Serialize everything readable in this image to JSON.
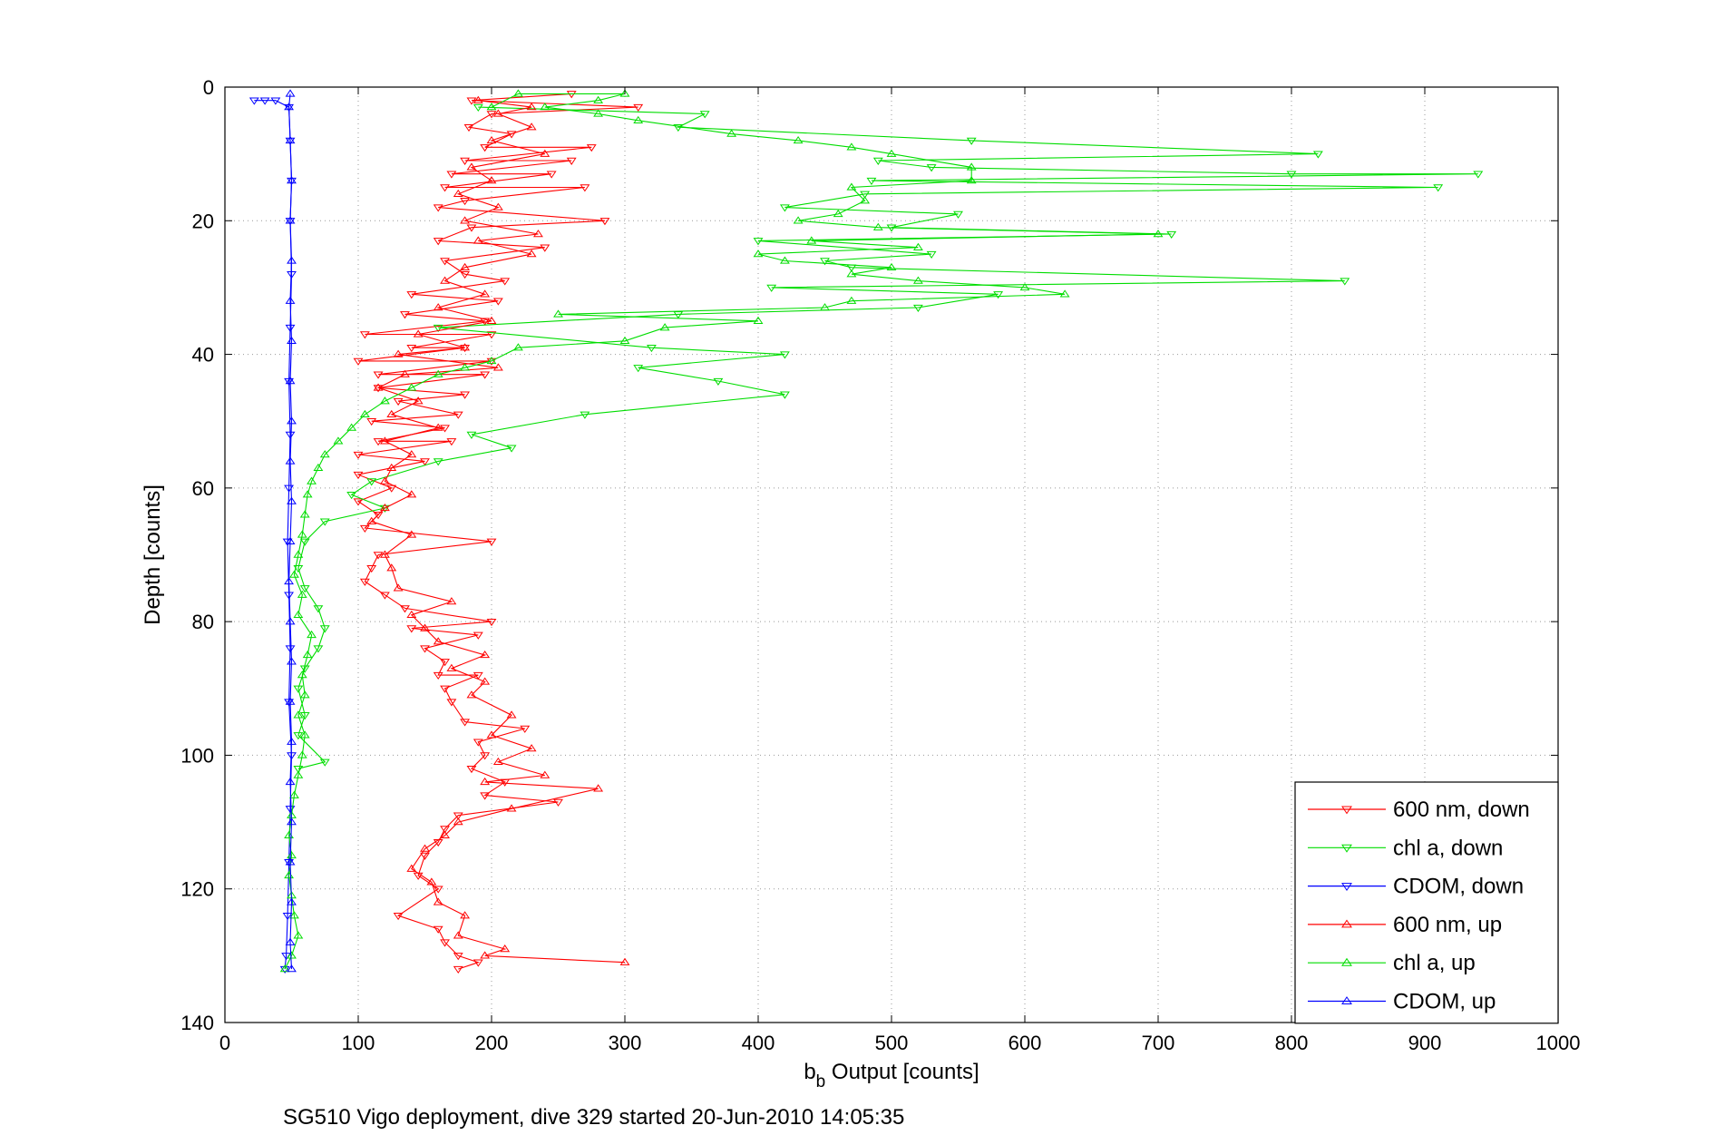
{
  "chart_data": {
    "type": "line",
    "xlabel": {
      "main": "b",
      "sub": "b",
      "rest": " Output [counts]"
    },
    "ylabel": "Depth [counts]",
    "caption": "SG510 Vigo deployment, dive 329 started 20-Jun-2010 14:05:35",
    "xlim": [
      0,
      1000
    ],
    "ylim": [
      0,
      140
    ],
    "y_reversed": true,
    "grid": true,
    "legend_position": "bottom-right",
    "xticks": [
      "0",
      "100",
      "200",
      "300",
      "400",
      "500",
      "600",
      "700",
      "800",
      "900",
      "1000"
    ],
    "yticks": [
      "0",
      "20",
      "40",
      "60",
      "80",
      "100",
      "120",
      "140"
    ],
    "series": [
      {
        "name": "600 nm, down",
        "color": "#ff0000",
        "marker": "triangle-down",
        "points": [
          [
            260,
            1
          ],
          [
            185,
            2
          ],
          [
            310,
            3
          ],
          [
            200,
            4
          ],
          [
            183,
            6
          ],
          [
            215,
            7
          ],
          [
            195,
            9
          ],
          [
            275,
            9
          ],
          [
            180,
            11
          ],
          [
            260,
            11
          ],
          [
            170,
            13
          ],
          [
            245,
            13
          ],
          [
            165,
            15
          ],
          [
            270,
            15
          ],
          [
            180,
            17
          ],
          [
            160,
            18
          ],
          [
            285,
            20
          ],
          [
            185,
            21
          ],
          [
            160,
            23
          ],
          [
            240,
            24
          ],
          [
            165,
            26
          ],
          [
            180,
            28
          ],
          [
            210,
            29
          ],
          [
            140,
            31
          ],
          [
            205,
            32
          ],
          [
            135,
            34
          ],
          [
            195,
            35
          ],
          [
            105,
            37
          ],
          [
            200,
            37
          ],
          [
            140,
            39
          ],
          [
            180,
            39
          ],
          [
            100,
            41
          ],
          [
            200,
            41
          ],
          [
            115,
            43
          ],
          [
            195,
            43
          ],
          [
            115,
            45
          ],
          [
            180,
            46
          ],
          [
            130,
            47
          ],
          [
            175,
            49
          ],
          [
            110,
            50
          ],
          [
            165,
            51
          ],
          [
            115,
            53
          ],
          [
            170,
            53
          ],
          [
            100,
            55
          ],
          [
            150,
            56
          ],
          [
            100,
            58
          ],
          [
            125,
            60
          ],
          [
            100,
            62
          ],
          [
            115,
            64
          ],
          [
            105,
            66
          ],
          [
            200,
            68
          ],
          [
            115,
            70
          ],
          [
            110,
            72
          ],
          [
            105,
            74
          ],
          [
            120,
            76
          ],
          [
            135,
            78
          ],
          [
            200,
            80
          ],
          [
            140,
            81
          ],
          [
            190,
            82
          ],
          [
            150,
            84
          ],
          [
            165,
            86
          ],
          [
            160,
            88
          ],
          [
            190,
            88
          ],
          [
            165,
            90
          ],
          [
            170,
            92
          ],
          [
            180,
            95
          ],
          [
            225,
            96
          ],
          [
            190,
            98
          ],
          [
            195,
            100
          ],
          [
            185,
            102
          ],
          [
            210,
            104
          ],
          [
            195,
            106
          ],
          [
            250,
            107
          ],
          [
            175,
            109
          ],
          [
            165,
            111
          ],
          [
            160,
            113
          ],
          [
            150,
            115
          ],
          [
            145,
            118
          ],
          [
            160,
            120
          ],
          [
            130,
            124
          ],
          [
            160,
            126
          ],
          [
            165,
            128
          ],
          [
            175,
            130
          ],
          [
            190,
            131
          ],
          [
            175,
            132
          ]
        ]
      },
      {
        "name": "chl a, down",
        "color": "#00dd00",
        "marker": "triangle-down",
        "points": [
          [
            190,
            3
          ],
          [
            360,
            4
          ],
          [
            340,
            6
          ],
          [
            560,
            8
          ],
          [
            820,
            10
          ],
          [
            490,
            11
          ],
          [
            530,
            12
          ],
          [
            800,
            13
          ],
          [
            940,
            13
          ],
          [
            485,
            14
          ],
          [
            910,
            15
          ],
          [
            480,
            16
          ],
          [
            420,
            18
          ],
          [
            550,
            19
          ],
          [
            500,
            21
          ],
          [
            710,
            22
          ],
          [
            400,
            23
          ],
          [
            530,
            25
          ],
          [
            450,
            26
          ],
          [
            470,
            27
          ],
          [
            840,
            29
          ],
          [
            410,
            30
          ],
          [
            580,
            31
          ],
          [
            520,
            33
          ],
          [
            340,
            34
          ],
          [
            160,
            36
          ],
          [
            320,
            39
          ],
          [
            420,
            40
          ],
          [
            310,
            42
          ],
          [
            370,
            44
          ],
          [
            420,
            46
          ],
          [
            270,
            49
          ],
          [
            185,
            52
          ],
          [
            215,
            54
          ],
          [
            160,
            56
          ],
          [
            110,
            59
          ],
          [
            95,
            61
          ],
          [
            120,
            63
          ],
          [
            75,
            65
          ],
          [
            60,
            68
          ],
          [
            55,
            72
          ],
          [
            60,
            75
          ],
          [
            70,
            78
          ],
          [
            75,
            81
          ],
          [
            70,
            84
          ],
          [
            60,
            87
          ],
          [
            55,
            90
          ],
          [
            60,
            94
          ],
          [
            55,
            97
          ],
          [
            75,
            101
          ],
          [
            55,
            102
          ]
        ]
      },
      {
        "name": "CDOM, down",
        "color": "#0000ff",
        "marker": "triangle-down",
        "points": [
          [
            22,
            2
          ],
          [
            30,
            2
          ],
          [
            38,
            2
          ],
          [
            48,
            3
          ],
          [
            49,
            8
          ],
          [
            50,
            14
          ],
          [
            49,
            20
          ],
          [
            50,
            28
          ],
          [
            49,
            36
          ],
          [
            48,
            44
          ],
          [
            49,
            52
          ],
          [
            48,
            60
          ],
          [
            47,
            68
          ],
          [
            48,
            76
          ],
          [
            49,
            84
          ],
          [
            48,
            92
          ],
          [
            50,
            100
          ],
          [
            49,
            108
          ],
          [
            48,
            116
          ],
          [
            47,
            124
          ],
          [
            46,
            130
          ],
          [
            45,
            132
          ]
        ]
      },
      {
        "name": "600 nm, up",
        "color": "#ff0000",
        "marker": "triangle-up",
        "points": [
          [
            300,
            131
          ],
          [
            195,
            130
          ],
          [
            210,
            129
          ],
          [
            175,
            127
          ],
          [
            180,
            124
          ],
          [
            160,
            122
          ],
          [
            155,
            119
          ],
          [
            140,
            117
          ],
          [
            150,
            114
          ],
          [
            165,
            112
          ],
          [
            175,
            110
          ],
          [
            215,
            108
          ],
          [
            280,
            105
          ],
          [
            195,
            104
          ],
          [
            240,
            103
          ],
          [
            205,
            101
          ],
          [
            230,
            99
          ],
          [
            200,
            97
          ],
          [
            215,
            94
          ],
          [
            185,
            91
          ],
          [
            195,
            89
          ],
          [
            170,
            87
          ],
          [
            195,
            85
          ],
          [
            160,
            83
          ],
          [
            150,
            81
          ],
          [
            140,
            79
          ],
          [
            170,
            77
          ],
          [
            130,
            75
          ],
          [
            125,
            72
          ],
          [
            120,
            70
          ],
          [
            140,
            67
          ],
          [
            110,
            65
          ],
          [
            120,
            63
          ],
          [
            140,
            61
          ],
          [
            120,
            59
          ],
          [
            125,
            57
          ],
          [
            140,
            55
          ],
          [
            120,
            53
          ],
          [
            160,
            51
          ],
          [
            125,
            49
          ],
          [
            145,
            47
          ],
          [
            115,
            45
          ],
          [
            135,
            43
          ],
          [
            205,
            42
          ],
          [
            130,
            40
          ],
          [
            180,
            39
          ],
          [
            145,
            37
          ],
          [
            200,
            35
          ],
          [
            160,
            33
          ],
          [
            195,
            31
          ],
          [
            165,
            29
          ],
          [
            180,
            27
          ],
          [
            230,
            25
          ],
          [
            190,
            23
          ],
          [
            235,
            22
          ],
          [
            180,
            20
          ],
          [
            205,
            18
          ],
          [
            175,
            16
          ],
          [
            200,
            14
          ],
          [
            185,
            12
          ],
          [
            240,
            10
          ],
          [
            200,
            8
          ],
          [
            230,
            6
          ],
          [
            205,
            4
          ],
          [
            230,
            3
          ],
          [
            190,
            2
          ]
        ]
      },
      {
        "name": "chl a, up",
        "color": "#00dd00",
        "marker": "triangle-up",
        "points": [
          [
            45,
            132
          ],
          [
            50,
            130
          ],
          [
            55,
            127
          ],
          [
            52,
            124
          ],
          [
            50,
            121
          ],
          [
            48,
            118
          ],
          [
            50,
            115
          ],
          [
            48,
            112
          ],
          [
            50,
            109
          ],
          [
            52,
            106
          ],
          [
            55,
            103
          ],
          [
            58,
            100
          ],
          [
            60,
            97
          ],
          [
            55,
            94
          ],
          [
            60,
            91
          ],
          [
            58,
            88
          ],
          [
            62,
            85
          ],
          [
            65,
            82
          ],
          [
            55,
            79
          ],
          [
            58,
            76
          ],
          [
            52,
            73
          ],
          [
            55,
            70
          ],
          [
            58,
            67
          ],
          [
            60,
            64
          ],
          [
            62,
            61
          ],
          [
            65,
            59
          ],
          [
            70,
            57
          ],
          [
            75,
            55
          ],
          [
            85,
            53
          ],
          [
            95,
            51
          ],
          [
            105,
            49
          ],
          [
            120,
            47
          ],
          [
            140,
            45
          ],
          [
            160,
            43
          ],
          [
            180,
            42
          ],
          [
            200,
            41
          ],
          [
            220,
            39
          ],
          [
            300,
            38
          ],
          [
            330,
            36
          ],
          [
            400,
            35
          ],
          [
            250,
            34
          ],
          [
            450,
            33
          ],
          [
            470,
            32
          ],
          [
            630,
            31
          ],
          [
            600,
            30
          ],
          [
            520,
            29
          ],
          [
            470,
            28
          ],
          [
            500,
            27
          ],
          [
            420,
            26
          ],
          [
            400,
            25
          ],
          [
            520,
            24
          ],
          [
            440,
            23
          ],
          [
            700,
            22
          ],
          [
            490,
            21
          ],
          [
            430,
            20
          ],
          [
            460,
            19
          ],
          [
            480,
            17
          ],
          [
            470,
            15
          ],
          [
            560,
            14
          ],
          [
            560,
            12
          ],
          [
            500,
            10
          ],
          [
            470,
            9
          ],
          [
            430,
            8
          ],
          [
            380,
            7
          ],
          [
            310,
            5
          ],
          [
            280,
            4
          ],
          [
            240,
            3
          ],
          [
            280,
            2
          ],
          [
            300,
            1
          ],
          [
            220,
            1
          ],
          [
            200,
            3
          ]
        ]
      },
      {
        "name": "CDOM, up",
        "color": "#0000ff",
        "marker": "triangle-up",
        "points": [
          [
            50,
            132
          ],
          [
            49,
            128
          ],
          [
            50,
            122
          ],
          [
            49,
            116
          ],
          [
            50,
            110
          ],
          [
            49,
            104
          ],
          [
            50,
            98
          ],
          [
            49,
            92
          ],
          [
            50,
            86
          ],
          [
            49,
            80
          ],
          [
            48,
            74
          ],
          [
            49,
            68
          ],
          [
            50,
            62
          ],
          [
            49,
            56
          ],
          [
            50,
            50
          ],
          [
            49,
            44
          ],
          [
            50,
            38
          ],
          [
            49,
            32
          ],
          [
            50,
            26
          ],
          [
            49,
            20
          ],
          [
            50,
            14
          ],
          [
            49,
            8
          ],
          [
            48,
            3
          ],
          [
            49,
            1
          ]
        ]
      }
    ]
  }
}
